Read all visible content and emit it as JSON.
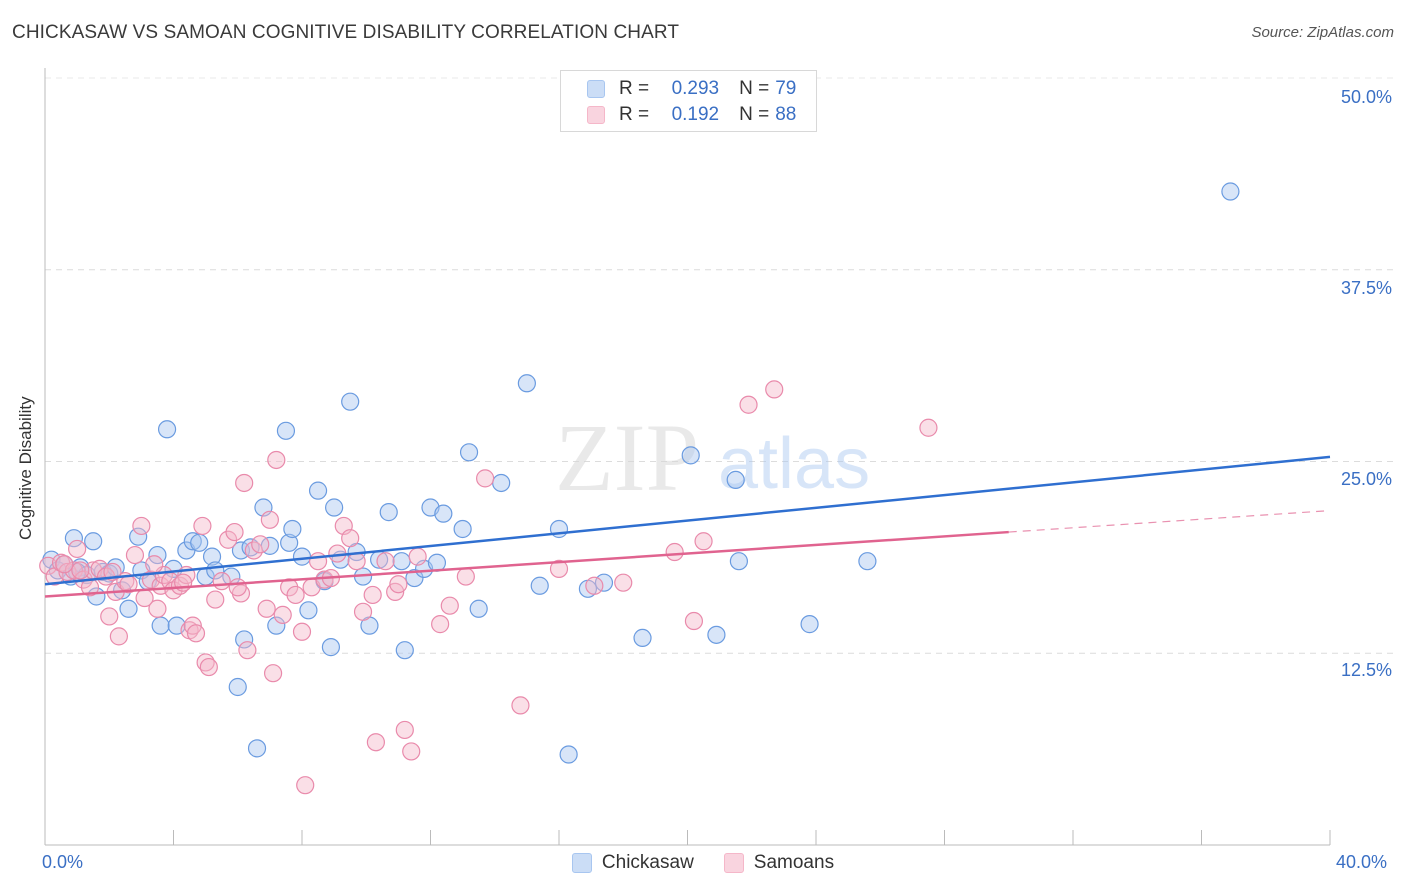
{
  "header": {
    "title": "CHICKASAW VS SAMOAN COGNITIVE DISABILITY CORRELATION CHART",
    "source": "Source: ZipAtlas.com"
  },
  "watermark": {
    "zip": "ZIP",
    "atlas": "atlas"
  },
  "legend_top": {
    "rows": [
      {
        "r_label": "R =",
        "r_value": "0.293",
        "n_label": "N =",
        "n_value": "79",
        "color": "#a8c6f0"
      },
      {
        "r_label": "R =",
        "r_value": "0.192",
        "n_label": "N =",
        "n_value": "88",
        "color": "#f5b7c9"
      }
    ]
  },
  "legend_bottom": {
    "items": [
      {
        "label": "Chickasaw",
        "color": "#a8c6f0"
      },
      {
        "label": "Samoans",
        "color": "#f5b7c9"
      }
    ]
  },
  "axis": {
    "x_min_label": "0.0%",
    "x_max_label": "40.0%",
    "y_labels": [
      "50.0%",
      "37.5%",
      "25.0%",
      "12.5%"
    ]
  },
  "chart_data": {
    "type": "scatter",
    "title": "CHICKASAW VS SAMOAN COGNITIVE DISABILITY CORRELATION CHART",
    "xlabel": "",
    "ylabel": "Cognitive Disability",
    "xlim": [
      0,
      40
    ],
    "ylim": [
      0,
      50
    ],
    "yticks": [
      12.5,
      25.0,
      37.5,
      50.0
    ],
    "grid": true,
    "legend_placement": "top-center",
    "series": [
      {
        "name": "Chickasaw",
        "color": "#6a9be0",
        "fill": "#a8c6f0",
        "R": 0.293,
        "N": 79,
        "trend": {
          "x": [
            0,
            40
          ],
          "y": [
            17.0,
            25.3
          ],
          "style": "solid",
          "color": "#2f6fd0"
        },
        "points": [
          [
            0.2,
            18.6
          ],
          [
            0.4,
            17.9
          ],
          [
            0.6,
            18.3
          ],
          [
            0.8,
            17.5
          ],
          [
            0.9,
            20.0
          ],
          [
            1.1,
            18.1
          ],
          [
            1.3,
            17.6
          ],
          [
            1.5,
            19.8
          ],
          [
            1.6,
            16.2
          ],
          [
            1.8,
            17.8
          ],
          [
            2.0,
            17.7
          ],
          [
            2.2,
            18.1
          ],
          [
            2.4,
            16.6
          ],
          [
            2.6,
            15.4
          ],
          [
            2.9,
            20.1
          ],
          [
            3.0,
            17.9
          ],
          [
            3.2,
            17.2
          ],
          [
            3.5,
            18.9
          ],
          [
            3.6,
            14.3
          ],
          [
            3.8,
            27.1
          ],
          [
            4.0,
            18.0
          ],
          [
            4.1,
            14.3
          ],
          [
            4.4,
            19.2
          ],
          [
            4.6,
            19.8
          ],
          [
            4.8,
            19.7
          ],
          [
            5.0,
            17.5
          ],
          [
            5.2,
            18.8
          ],
          [
            5.3,
            17.9
          ],
          [
            5.8,
            17.5
          ],
          [
            6.0,
            10.3
          ],
          [
            6.1,
            19.2
          ],
          [
            6.2,
            13.4
          ],
          [
            6.4,
            19.4
          ],
          [
            6.6,
            6.3
          ],
          [
            6.8,
            22.0
          ],
          [
            7.0,
            19.5
          ],
          [
            7.2,
            14.3
          ],
          [
            7.6,
            19.7
          ],
          [
            7.5,
            27.0
          ],
          [
            7.7,
            20.6
          ],
          [
            8.0,
            18.8
          ],
          [
            8.2,
            15.3
          ],
          [
            8.5,
            23.1
          ],
          [
            8.7,
            17.2
          ],
          [
            8.9,
            12.9
          ],
          [
            9.0,
            22.0
          ],
          [
            9.2,
            18.6
          ],
          [
            9.5,
            28.9
          ],
          [
            9.7,
            19.1
          ],
          [
            9.9,
            17.5
          ],
          [
            10.1,
            14.3
          ],
          [
            10.4,
            18.6
          ],
          [
            10.7,
            21.7
          ],
          [
            11.1,
            18.5
          ],
          [
            11.2,
            12.7
          ],
          [
            11.5,
            17.4
          ],
          [
            11.8,
            18.0
          ],
          [
            12.0,
            22.0
          ],
          [
            12.2,
            18.4
          ],
          [
            12.4,
            21.6
          ],
          [
            13.0,
            20.6
          ],
          [
            13.2,
            25.6
          ],
          [
            13.5,
            15.4
          ],
          [
            14.2,
            23.6
          ],
          [
            15.0,
            30.1
          ],
          [
            15.4,
            16.9
          ],
          [
            16.0,
            20.6
          ],
          [
            16.3,
            5.9
          ],
          [
            16.9,
            16.7
          ],
          [
            17.4,
            17.1
          ],
          [
            18.6,
            13.5
          ],
          [
            20.1,
            25.4
          ],
          [
            20.9,
            13.7
          ],
          [
            21.5,
            23.8
          ],
          [
            21.6,
            18.5
          ],
          [
            23.8,
            14.4
          ],
          [
            25.6,
            18.5
          ],
          [
            36.9,
            42.6
          ],
          [
            1.0,
            17.8
          ]
        ]
      },
      {
        "name": "Samoans",
        "color": "#e98aab",
        "fill": "#f5b7c9",
        "R": 0.192,
        "N": 88,
        "trend": {
          "x": [
            0,
            30.0
          ],
          "y": [
            16.2,
            20.4
          ],
          "style": "solid",
          "color": "#e0638f",
          "extension": {
            "x": [
              30.0,
              40
            ],
            "y": [
              20.4,
              21.8
            ],
            "style": "dashed"
          }
        },
        "points": [
          [
            0.1,
            18.2
          ],
          [
            0.3,
            17.5
          ],
          [
            0.5,
            18.4
          ],
          [
            0.7,
            17.8
          ],
          [
            0.9,
            17.9
          ],
          [
            1.0,
            19.3
          ],
          [
            1.2,
            17.3
          ],
          [
            1.4,
            16.8
          ],
          [
            1.5,
            17.9
          ],
          [
            1.7,
            18.0
          ],
          [
            1.9,
            17.5
          ],
          [
            2.0,
            14.9
          ],
          [
            2.2,
            16.5
          ],
          [
            2.3,
            13.6
          ],
          [
            2.5,
            17.2
          ],
          [
            2.6,
            17.0
          ],
          [
            2.8,
            18.9
          ],
          [
            3.0,
            20.8
          ],
          [
            3.1,
            16.1
          ],
          [
            3.3,
            17.3
          ],
          [
            3.5,
            15.4
          ],
          [
            3.6,
            16.9
          ],
          [
            3.7,
            17.6
          ],
          [
            3.9,
            17.2
          ],
          [
            4.0,
            16.6
          ],
          [
            4.2,
            16.9
          ],
          [
            4.4,
            17.6
          ],
          [
            4.5,
            14.0
          ],
          [
            4.6,
            14.3
          ],
          [
            4.7,
            13.8
          ],
          [
            4.9,
            20.8
          ],
          [
            5.0,
            11.9
          ],
          [
            5.1,
            11.6
          ],
          [
            5.3,
            16.0
          ],
          [
            5.5,
            17.2
          ],
          [
            5.7,
            19.9
          ],
          [
            5.9,
            20.4
          ],
          [
            6.1,
            16.4
          ],
          [
            6.2,
            23.6
          ],
          [
            6.3,
            12.7
          ],
          [
            6.5,
            19.2
          ],
          [
            6.7,
            19.6
          ],
          [
            6.9,
            15.4
          ],
          [
            7.0,
            21.2
          ],
          [
            7.1,
            11.2
          ],
          [
            7.2,
            25.1
          ],
          [
            7.4,
            15.0
          ],
          [
            7.6,
            16.8
          ],
          [
            7.8,
            16.3
          ],
          [
            8.0,
            13.9
          ],
          [
            8.1,
            3.9
          ],
          [
            8.3,
            16.8
          ],
          [
            8.5,
            18.5
          ],
          [
            8.7,
            17.3
          ],
          [
            8.9,
            17.4
          ],
          [
            9.1,
            19.0
          ],
          [
            9.3,
            20.8
          ],
          [
            9.5,
            20.0
          ],
          [
            9.7,
            18.5
          ],
          [
            9.9,
            15.2
          ],
          [
            10.2,
            16.3
          ],
          [
            10.3,
            6.7
          ],
          [
            10.6,
            18.5
          ],
          [
            10.9,
            16.5
          ],
          [
            11.0,
            17.0
          ],
          [
            11.2,
            7.5
          ],
          [
            11.4,
            6.1
          ],
          [
            11.6,
            18.8
          ],
          [
            12.3,
            14.4
          ],
          [
            12.6,
            15.6
          ],
          [
            13.1,
            17.5
          ],
          [
            13.7,
            23.9
          ],
          [
            14.8,
            9.1
          ],
          [
            16.0,
            18.0
          ],
          [
            17.1,
            16.9
          ],
          [
            18.0,
            17.1
          ],
          [
            19.6,
            19.1
          ],
          [
            20.2,
            14.6
          ],
          [
            20.5,
            19.8
          ],
          [
            21.9,
            28.7
          ],
          [
            22.7,
            29.7
          ],
          [
            27.5,
            27.2
          ],
          [
            1.1,
            17.9
          ],
          [
            2.1,
            17.8
          ],
          [
            0.6,
            18.3
          ],
          [
            3.4,
            18.3
          ],
          [
            4.3,
            17.1
          ],
          [
            6.0,
            16.8
          ]
        ]
      }
    ]
  }
}
